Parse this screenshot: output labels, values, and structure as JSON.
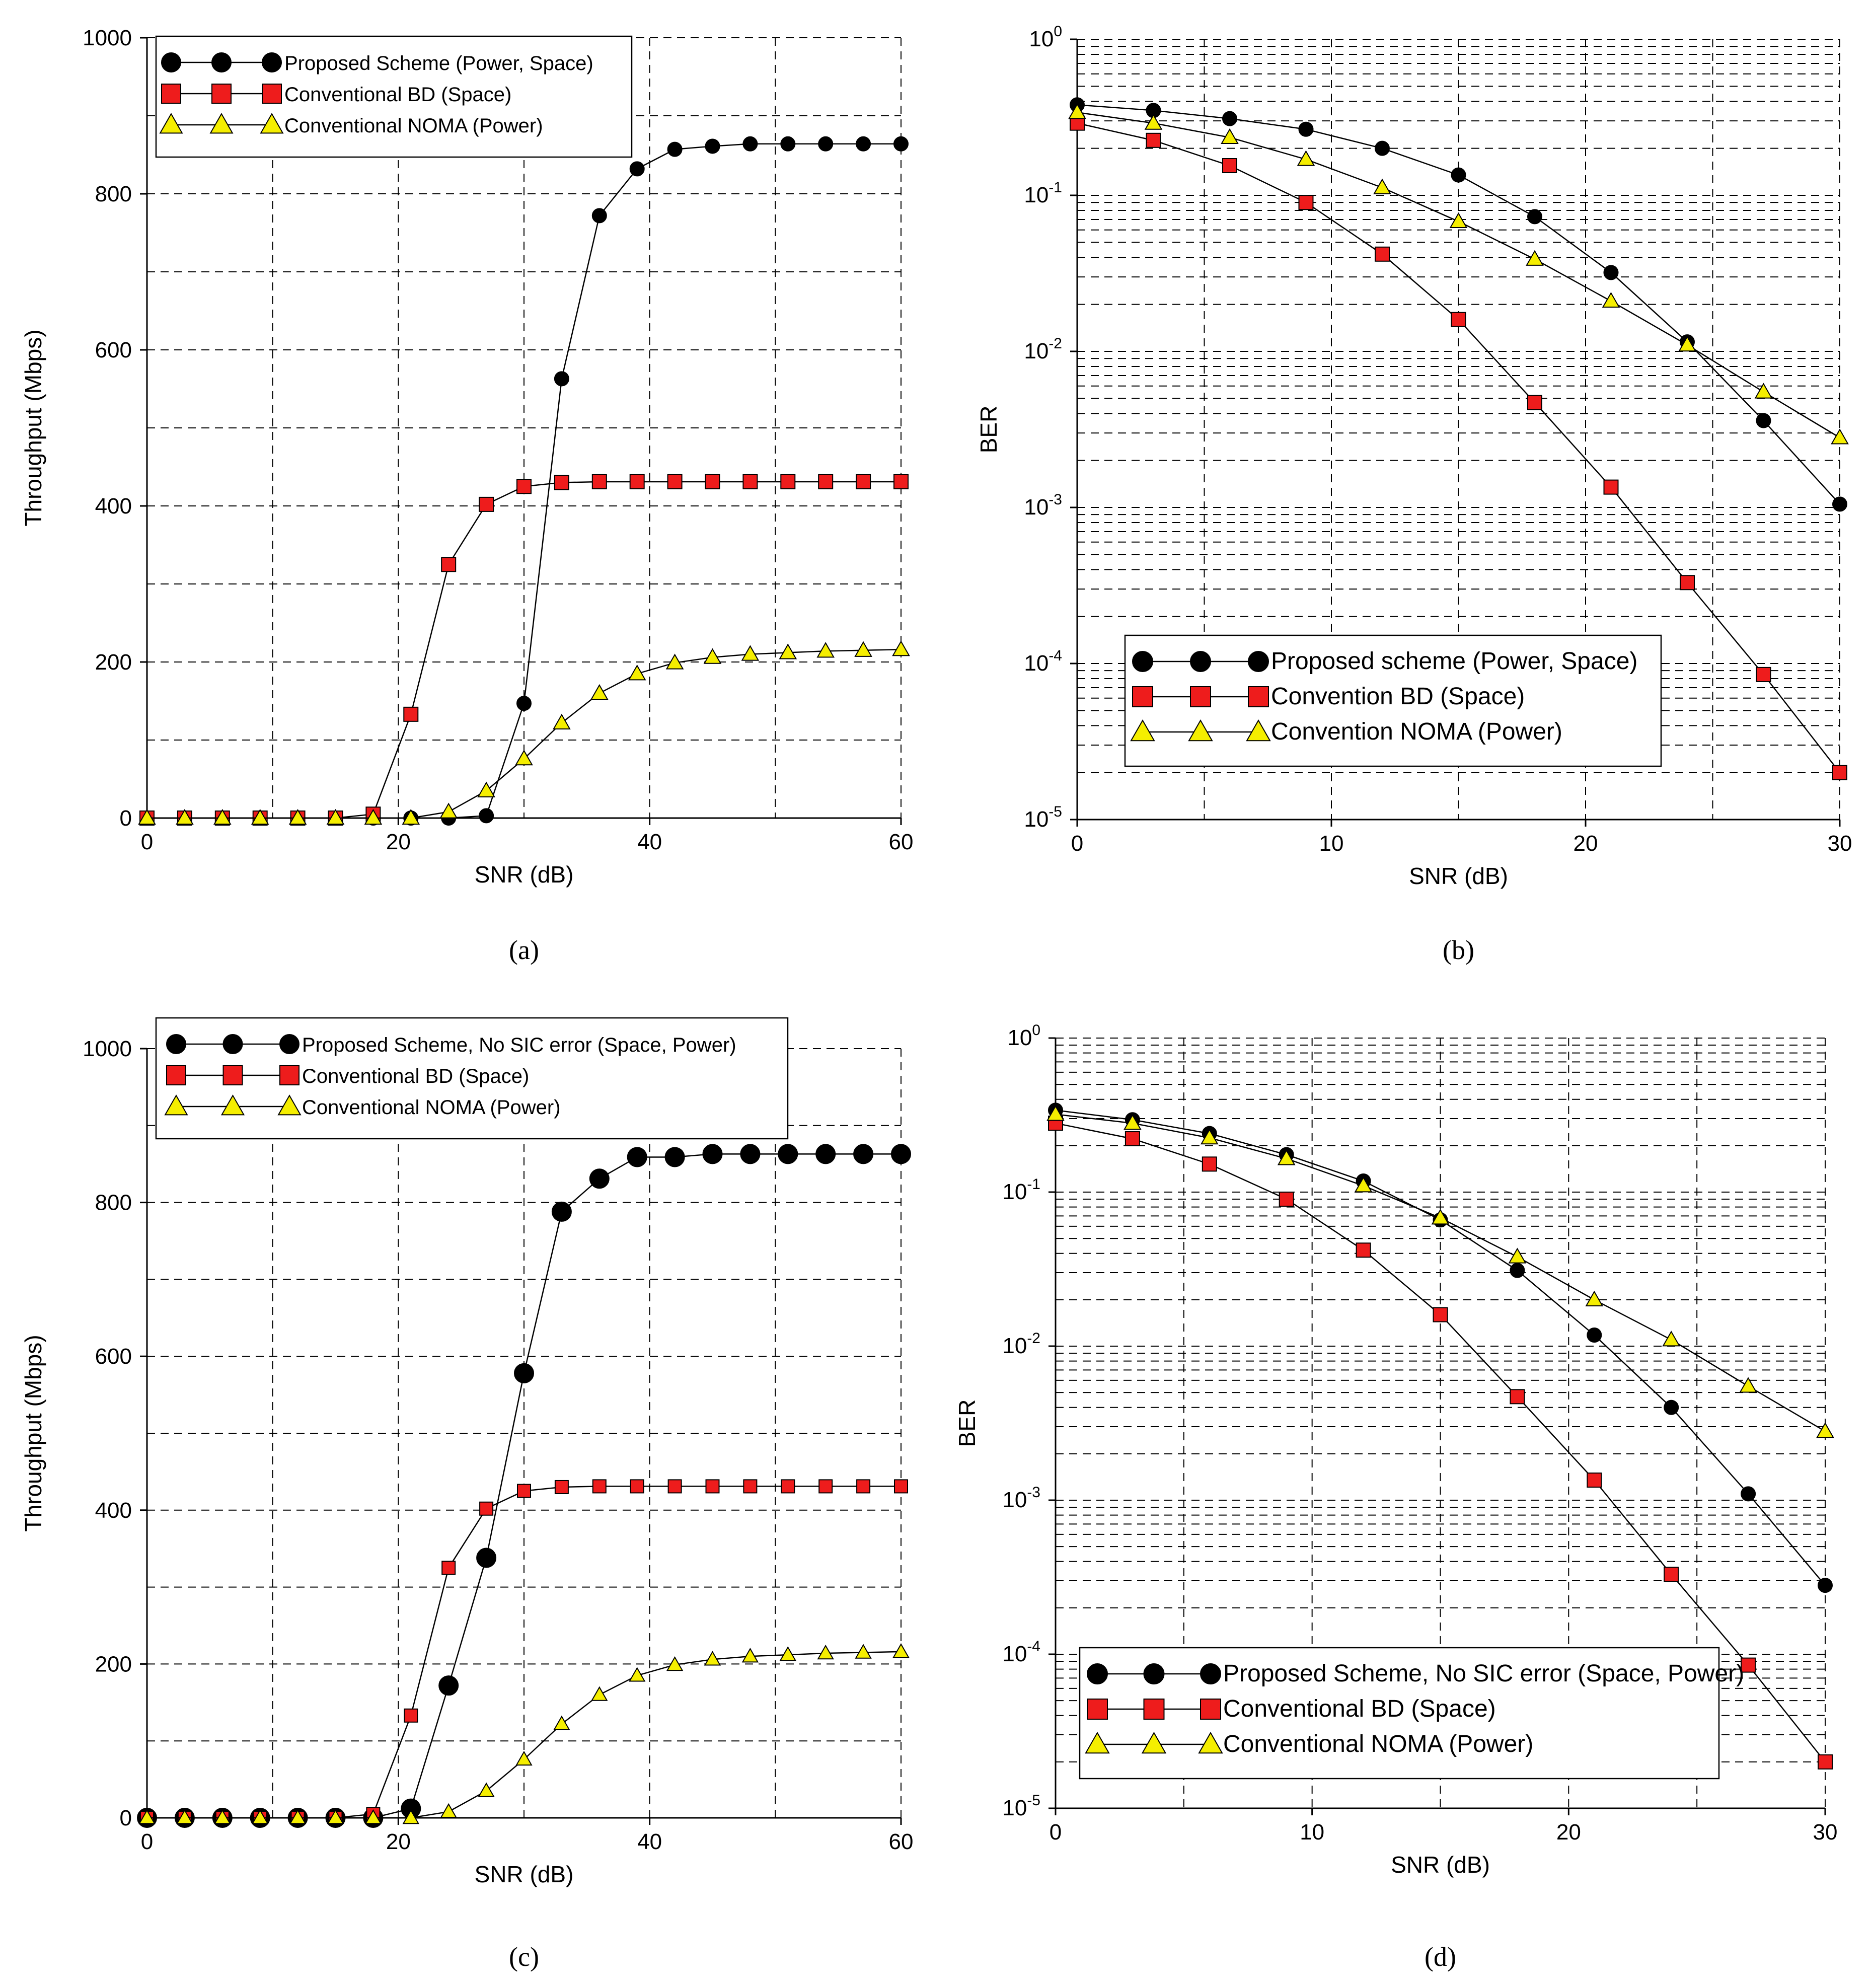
{
  "figure": {
    "colors": {
      "proposed": "#000000",
      "bd": "#ee1c1c",
      "noma": "#f5ee00",
      "marker_stroke": "#000000",
      "grid": "#000000"
    }
  },
  "chart_data": [
    {
      "panel": "(a)",
      "type": "line",
      "xlabel": "SNR (dB)",
      "ylabel": "Throughput (Mbps)",
      "xlim": [
        0,
        60
      ],
      "ylim": [
        0,
        1000
      ],
      "yscale": "linear",
      "xticks": [
        0,
        20,
        40,
        60
      ],
      "yticks": [
        0,
        200,
        400,
        600,
        800,
        1000
      ],
      "x": [
        0,
        3,
        6,
        9,
        12,
        15,
        18,
        21,
        24,
        27,
        30,
        33,
        36,
        39,
        42,
        45,
        48,
        51,
        54,
        57,
        60
      ],
      "legend_position": "top-left",
      "series": [
        {
          "name": "Proposed Scheme (Power, Space)",
          "marker": "circle",
          "color_key": "proposed",
          "values": [
            0,
            0,
            0,
            0,
            0,
            0,
            0,
            0,
            0,
            3,
            147,
            563,
            772,
            832,
            857,
            861,
            864,
            864,
            864,
            864,
            864
          ]
        },
        {
          "name": "Conventional BD (Space)",
          "marker": "square",
          "color_key": "bd",
          "values": [
            0,
            0,
            0,
            0,
            0,
            0,
            5,
            133,
            325,
            402,
            425,
            430,
            431,
            431,
            431,
            431,
            431,
            431,
            431,
            431,
            431
          ]
        },
        {
          "name": "Conventional NOMA (Power)",
          "marker": "triangle",
          "color_key": "noma",
          "values": [
            0,
            0,
            0,
            0,
            0,
            0,
            0,
            0,
            8,
            35,
            76,
            122,
            160,
            185,
            199,
            206,
            210,
            212,
            214,
            215,
            216
          ]
        }
      ]
    },
    {
      "panel": "(b)",
      "type": "line",
      "xlabel": "SNR (dB)",
      "ylabel": "BER",
      "xlim": [
        0,
        30
      ],
      "ylim": [
        1e-05,
        1
      ],
      "yscale": "log",
      "xticks": [
        0,
        10,
        20,
        30
      ],
      "yticks_exponents": [
        0,
        -1,
        -2,
        -3,
        -4,
        -5
      ],
      "x": [
        0,
        3,
        6,
        9,
        12,
        15,
        18,
        21,
        24,
        27,
        30
      ],
      "legend_position": "bottom-center",
      "series": [
        {
          "name": "Proposed scheme (Power, Space)",
          "marker": "circle",
          "color_key": "proposed",
          "values": [
            0.38,
            0.35,
            0.31,
            0.265,
            0.2,
            0.135,
            0.073,
            0.032,
            0.0115,
            0.0036,
            0.00105
          ]
        },
        {
          "name": "Convention BD (Space)",
          "marker": "square",
          "color_key": "bd",
          "values": [
            0.29,
            0.225,
            0.155,
            0.09,
            0.042,
            0.016,
            0.0047,
            0.00135,
            0.00033,
            8.5e-05,
            2e-05
          ]
        },
        {
          "name": "Convention NOMA (Power)",
          "marker": "triangle",
          "color_key": "noma",
          "values": [
            0.34,
            0.29,
            0.235,
            0.17,
            0.112,
            0.068,
            0.039,
            0.021,
            0.011,
            0.0055,
            0.0028
          ]
        }
      ]
    },
    {
      "panel": "(c)",
      "type": "line",
      "xlabel": "SNR (dB)",
      "ylabel": "Throughput (Mbps)",
      "xlim": [
        0,
        60
      ],
      "ylim": [
        0,
        1000
      ],
      "yscale": "linear",
      "xticks": [
        0,
        20,
        40,
        60
      ],
      "yticks": [
        0,
        200,
        400,
        600,
        800,
        1000
      ],
      "x": [
        0,
        3,
        6,
        9,
        12,
        15,
        18,
        21,
        24,
        27,
        30,
        33,
        36,
        39,
        42,
        45,
        48,
        51,
        54,
        57,
        60
      ],
      "legend_position": "top-left",
      "series": [
        {
          "name": "Proposed Scheme, No SIC error (Space, Power)",
          "marker": "circle",
          "color_key": "proposed",
          "values": [
            0,
            0,
            0,
            0,
            0,
            0,
            0,
            12,
            172,
            338,
            578,
            788,
            831,
            859,
            859,
            863,
            863,
            863,
            863,
            863,
            863
          ]
        },
        {
          "name": "Conventional BD (Space)",
          "marker": "square",
          "color_key": "bd",
          "values": [
            0,
            0,
            0,
            0,
            0,
            0,
            5,
            133,
            325,
            402,
            425,
            430,
            431,
            431,
            431,
            431,
            431,
            431,
            431,
            431,
            431
          ]
        },
        {
          "name": "Conventional NOMA (Power)",
          "marker": "triangle",
          "color_key": "noma",
          "values": [
            0,
            0,
            0,
            0,
            0,
            0,
            0,
            0,
            8,
            35,
            76,
            122,
            160,
            185,
            199,
            206,
            210,
            212,
            214,
            215,
            216
          ]
        }
      ]
    },
    {
      "panel": "(d)",
      "type": "line",
      "xlabel": "SNR (dB)",
      "ylabel": "BER",
      "xlim": [
        0,
        30
      ],
      "ylim": [
        1e-05,
        1
      ],
      "yscale": "log",
      "xticks": [
        0,
        10,
        20,
        30
      ],
      "yticks_exponents": [
        0,
        -1,
        -2,
        -3,
        -4,
        -5
      ],
      "x": [
        0,
        3,
        6,
        9,
        12,
        15,
        18,
        21,
        24,
        27,
        30
      ],
      "legend_position": "bottom-left",
      "series": [
        {
          "name": "Proposed Scheme, No SIC error (Space, Power)",
          "marker": "circle",
          "color_key": "proposed",
          "values": [
            0.34,
            0.295,
            0.24,
            0.175,
            0.118,
            0.066,
            0.031,
            0.0118,
            0.004,
            0.0011,
            0.00028
          ]
        },
        {
          "name": "Conventional BD (Space)",
          "marker": "square",
          "color_key": "bd",
          "values": [
            0.28,
            0.222,
            0.152,
            0.09,
            0.042,
            0.016,
            0.0047,
            0.00135,
            0.00033,
            8.5e-05,
            2e-05
          ]
        },
        {
          "name": "Conventional NOMA (Power)",
          "marker": "triangle",
          "color_key": "noma",
          "values": [
            0.32,
            0.28,
            0.225,
            0.165,
            0.11,
            0.068,
            0.038,
            0.02,
            0.011,
            0.0055,
            0.0028
          ]
        }
      ]
    }
  ]
}
